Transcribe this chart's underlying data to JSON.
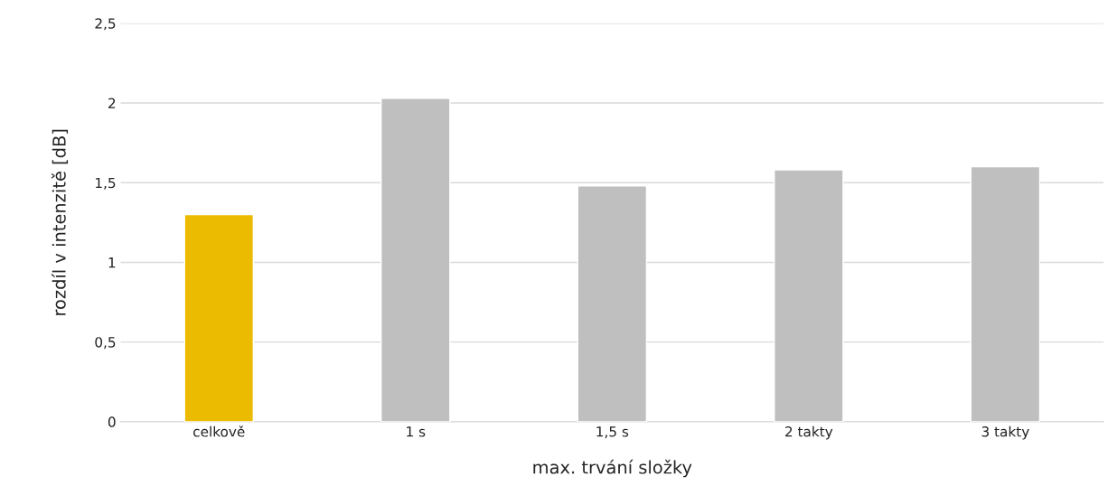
{
  "chart_data": {
    "type": "bar",
    "xlabel": "max. trvání složky",
    "ylabel": "rozdíl v intenzitě [dB]",
    "categories": [
      "celkově",
      "1 s",
      "1,5 s",
      "2 takty",
      "3 takty"
    ],
    "values": [
      1.3,
      2.03,
      1.48,
      1.58,
      1.6
    ],
    "colors": [
      "#eabb00",
      "#bfbfbf",
      "#bfbfbf",
      "#bfbfbf",
      "#bfbfbf"
    ],
    "ylim": [
      0,
      2.5
    ],
    "yticks": [
      0,
      {
        "value": 0.5,
        "label": "0,5"
      },
      1,
      {
        "value": 1.5,
        "label": "1,5"
      },
      2,
      {
        "value": 2.5,
        "label": "2,5"
      }
    ],
    "grid": "y",
    "legend": false
  }
}
